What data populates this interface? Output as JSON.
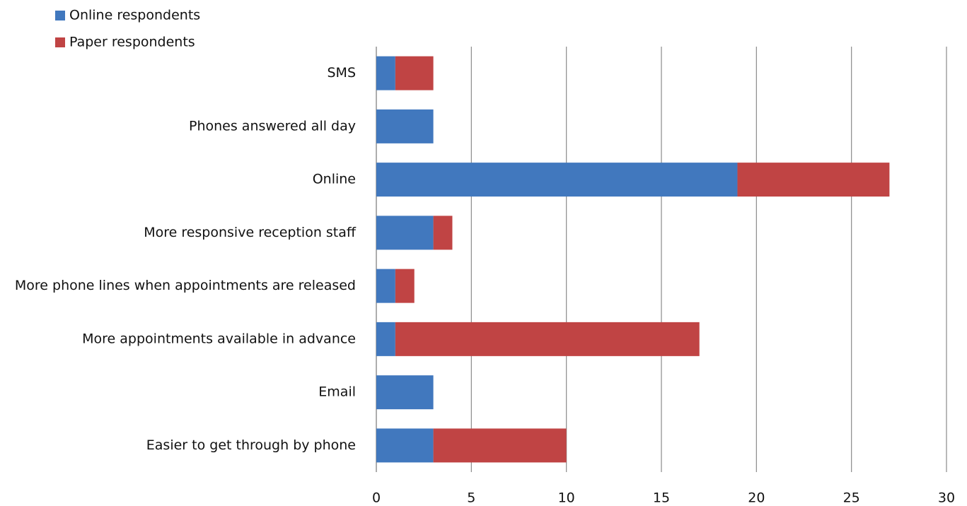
{
  "chart_data": {
    "type": "stacked_bar_horizontal",
    "categories": [
      "SMS",
      "Phones answered all day",
      "Online",
      "More responsive reception staff",
      "More phone lines when appointments are released",
      "More appointments available in advance",
      "Email",
      "Easier to get through by phone"
    ],
    "series": [
      {
        "name": "Online respondents",
        "color": "#4178be",
        "values": [
          1,
          3,
          19,
          3,
          1,
          1,
          3,
          3
        ]
      },
      {
        "name": "Paper respondents",
        "color": "#c04444",
        "values": [
          2,
          0,
          8,
          1,
          1,
          16,
          0,
          7
        ]
      }
    ],
    "xlim": [
      0,
      30
    ],
    "xticks": [
      0,
      5,
      10,
      15,
      20,
      25,
      30
    ],
    "grid": true,
    "legend": "top-left"
  }
}
